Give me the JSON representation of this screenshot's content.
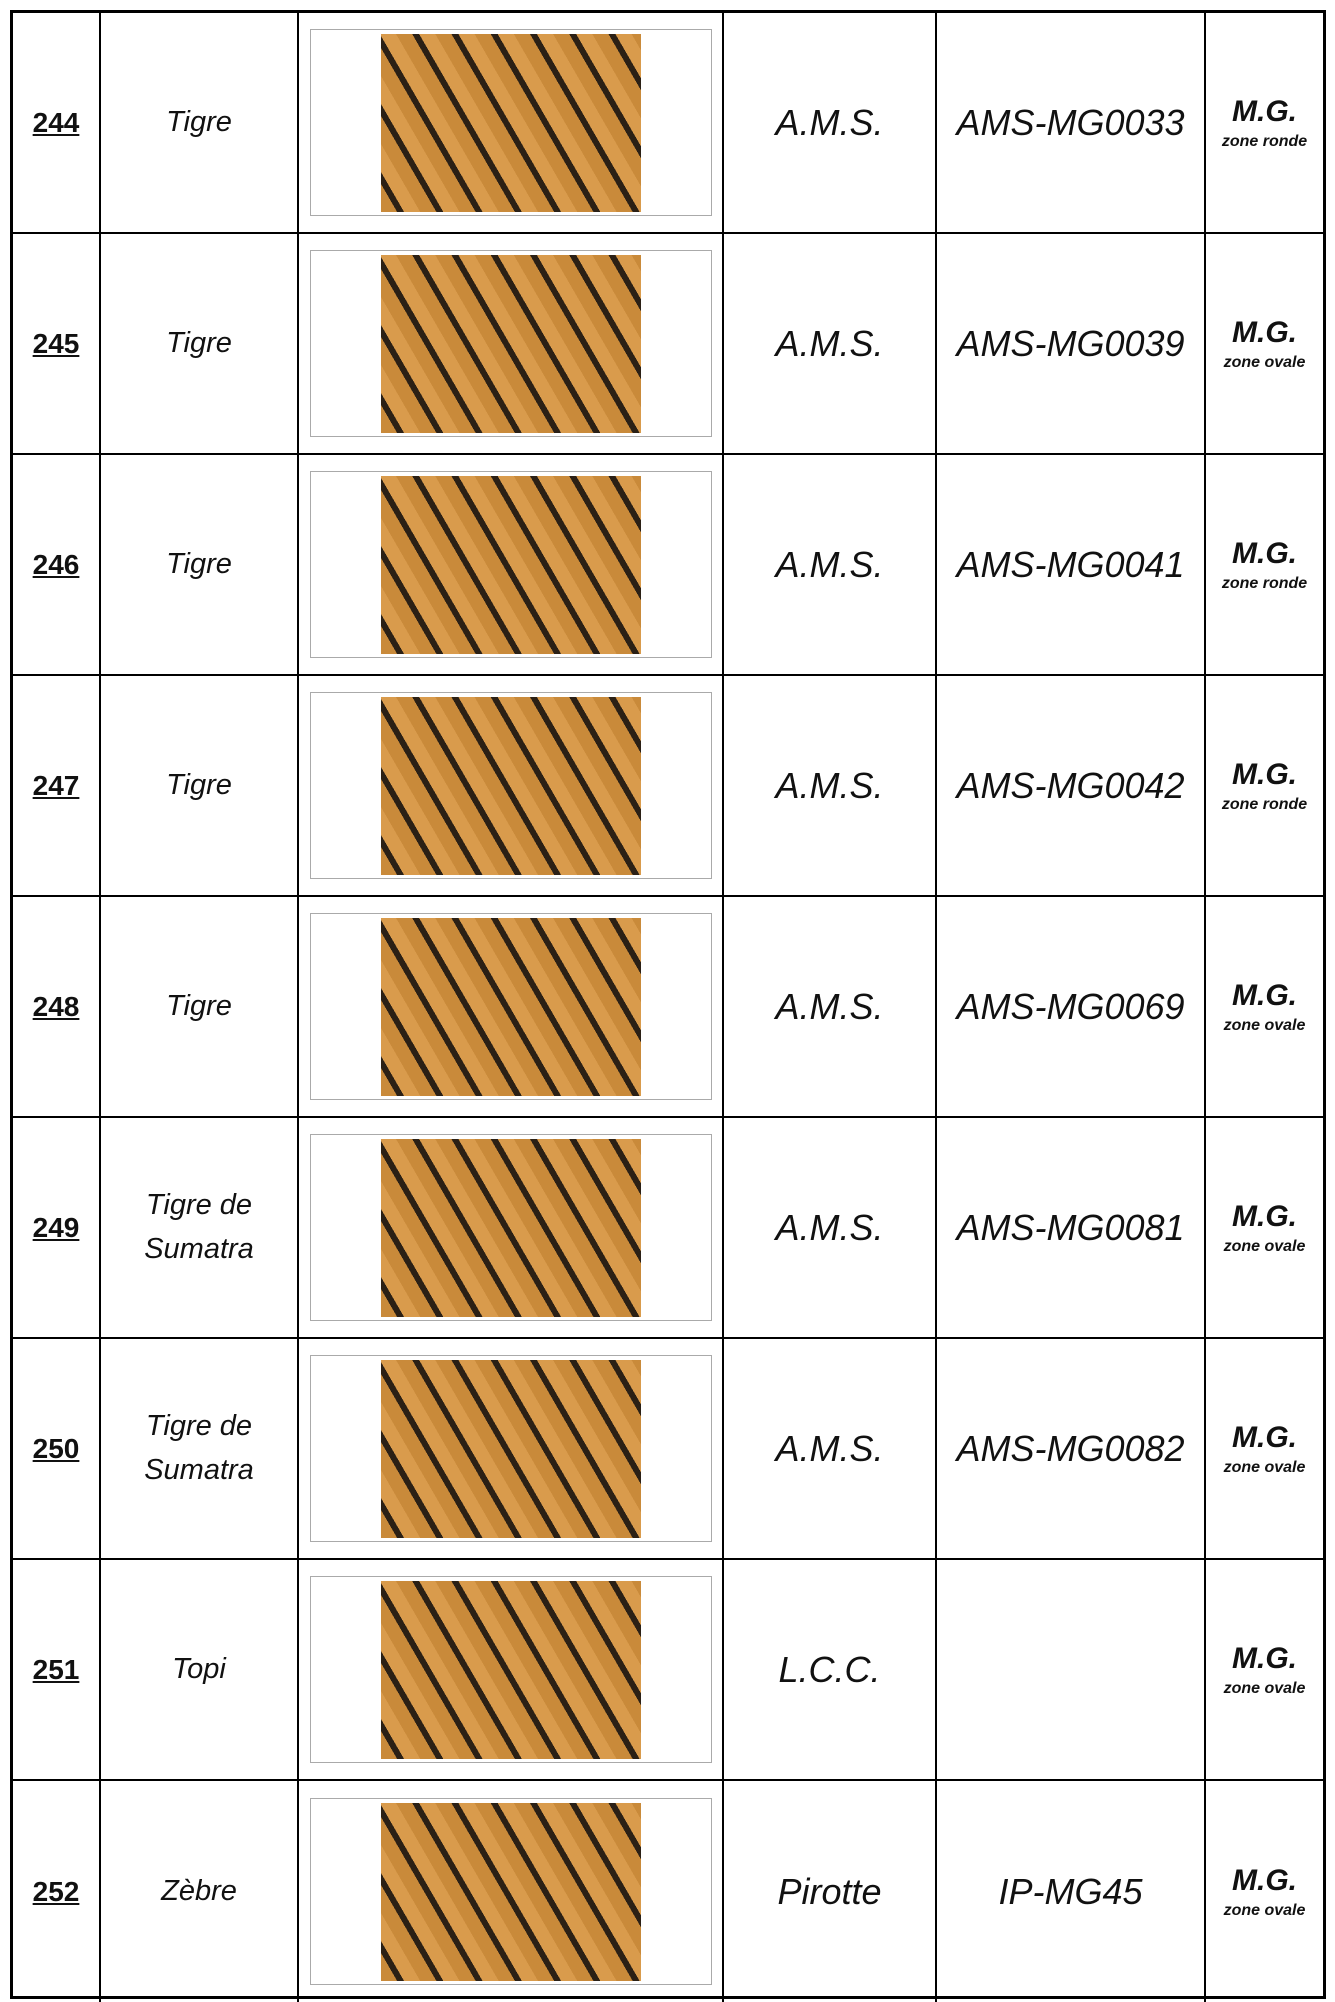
{
  "table": {
    "rows": [
      {
        "number": "244",
        "name": "Tigre",
        "maker": "A.M.S.",
        "ref": "AMS-MG0033",
        "type": "M.G.",
        "zone": "zone ronde"
      },
      {
        "number": "245",
        "name": "Tigre",
        "maker": "A.M.S.",
        "ref": "AMS-MG0039",
        "type": "M.G.",
        "zone": "zone ovale"
      },
      {
        "number": "246",
        "name": "Tigre",
        "maker": "A.M.S.",
        "ref": "AMS-MG0041",
        "type": "M.G.",
        "zone": "zone ronde"
      },
      {
        "number": "247",
        "name": "Tigre",
        "maker": "A.M.S.",
        "ref": "AMS-MG0042",
        "type": "M.G.",
        "zone": "zone ronde"
      },
      {
        "number": "248",
        "name": "Tigre",
        "maker": "A.M.S.",
        "ref": "AMS-MG0069",
        "type": "M.G.",
        "zone": "zone ovale"
      },
      {
        "number": "249",
        "name": "Tigre de Sumatra",
        "maker": "A.M.S.",
        "ref": "AMS-MG0081",
        "type": "M.G.",
        "zone": "zone ovale"
      },
      {
        "number": "250",
        "name": "Tigre de Sumatra",
        "maker": "A.M.S.",
        "ref": "AMS-MG0082",
        "type": "M.G.",
        "zone": "zone ovale"
      },
      {
        "number": "251",
        "name": "Topi",
        "maker": "L.C.C.",
        "type": "M.G.",
        "zone": "zone ovale"
      },
      {
        "number": "252",
        "name": "Zèbre",
        "maker": "Pirotte",
        "ref": "IP-MG45",
        "type": "M.G.",
        "zone": "zone ovale"
      }
    ]
  }
}
